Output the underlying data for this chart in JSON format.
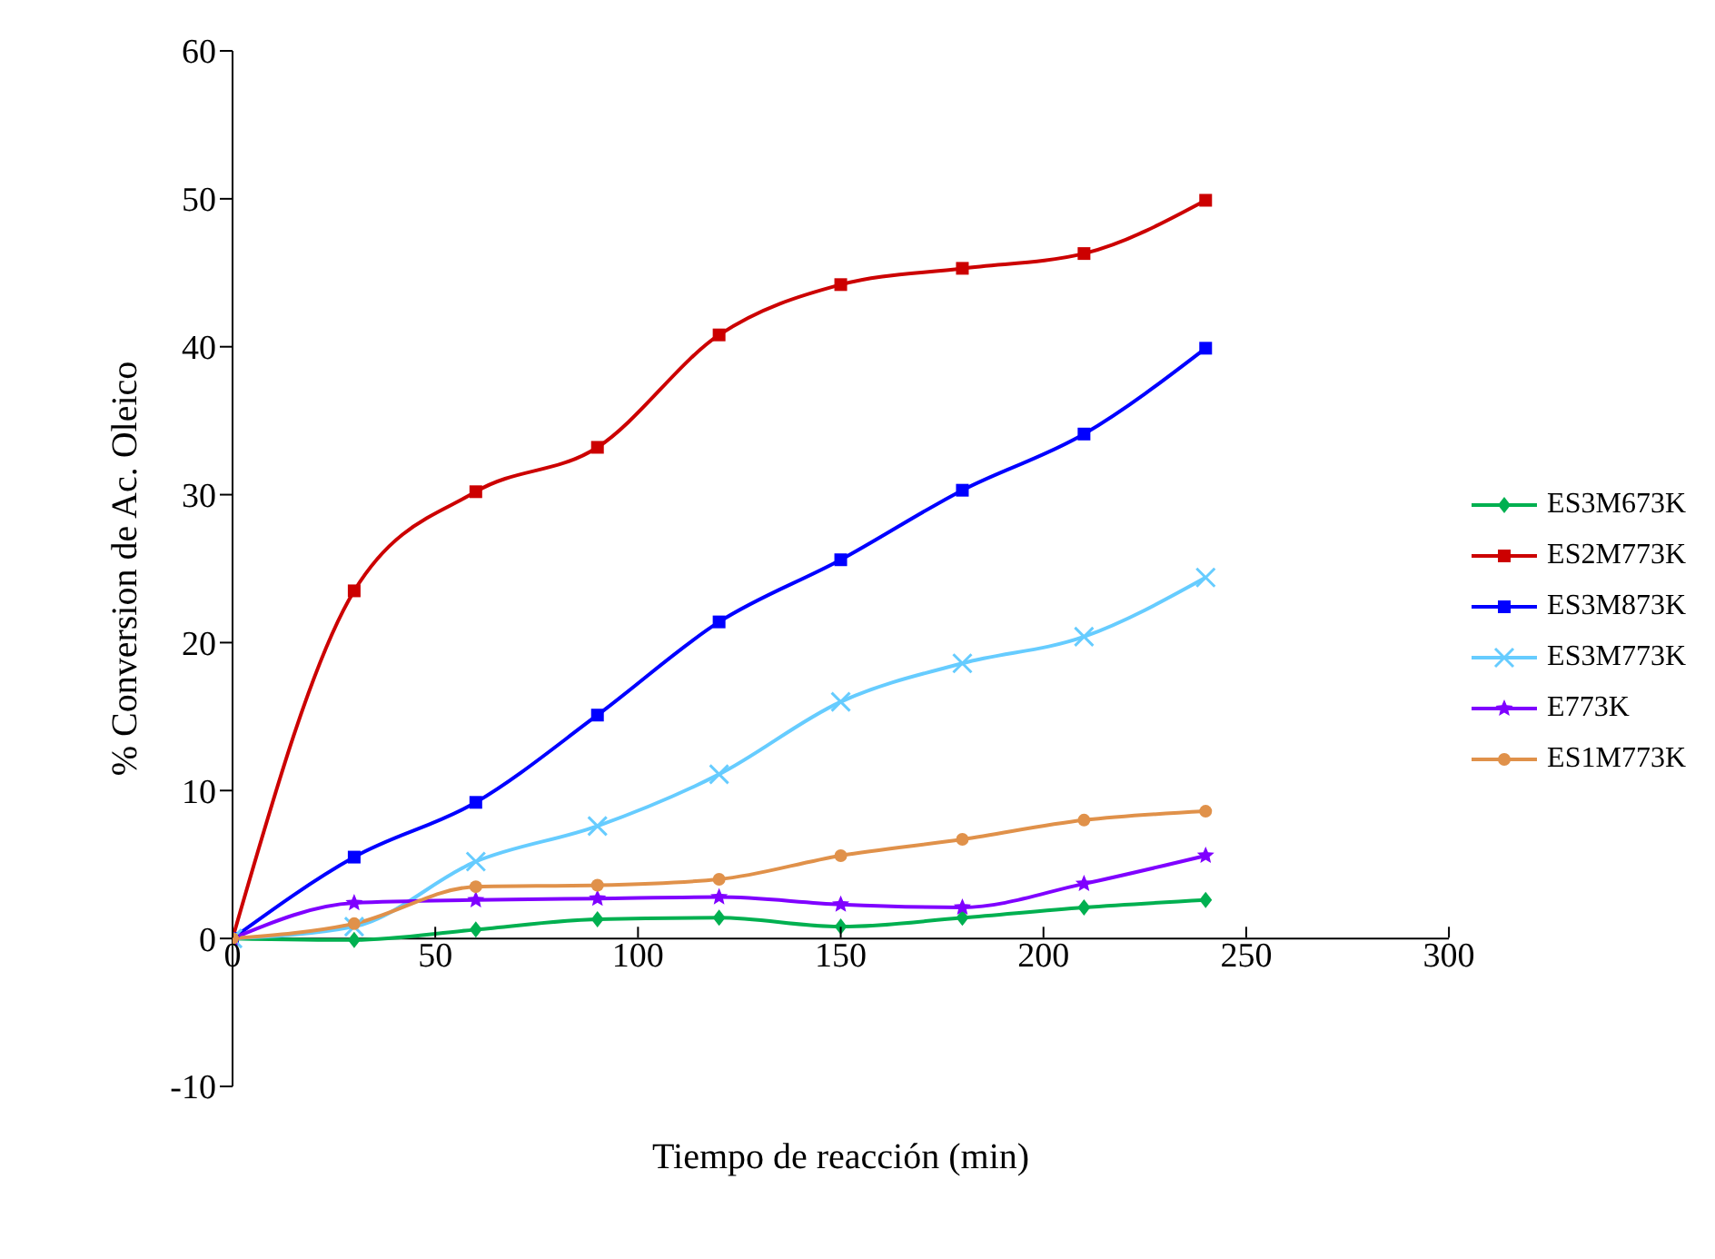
{
  "chart_data": {
    "type": "line",
    "xlabel": "Tiempo de reacción (min)",
    "ylabel": "% Conversion de Ac. Oleico",
    "x": [
      0,
      30,
      60,
      90,
      120,
      150,
      180,
      210,
      240
    ],
    "series": [
      {
        "name": "ES3M673K",
        "color": "#00b050",
        "marker": "diamond",
        "values": [
          0,
          -0.1,
          0.6,
          1.3,
          1.4,
          0.8,
          1.4,
          2.1,
          2.6
        ]
      },
      {
        "name": "ES2M773K",
        "color": "#cc0000",
        "marker": "square",
        "values": [
          0,
          23.5,
          30.2,
          33.2,
          40.8,
          44.2,
          45.3,
          46.3,
          49.9
        ]
      },
      {
        "name": "ES3M873K",
        "color": "#0000ff",
        "marker": "square",
        "values": [
          0,
          5.5,
          9.2,
          15.1,
          21.4,
          25.6,
          30.3,
          34.1,
          39.9
        ]
      },
      {
        "name": "ES3M773K",
        "color": "#66ccff",
        "marker": "cross",
        "values": [
          0,
          0.8,
          5.2,
          7.6,
          11.1,
          16.0,
          18.6,
          20.4,
          24.4
        ]
      },
      {
        "name": "E773K",
        "color": "#7f00ff",
        "marker": "star",
        "values": [
          0,
          2.4,
          2.6,
          2.7,
          2.8,
          2.3,
          2.1,
          3.7,
          5.6
        ]
      },
      {
        "name": "ES1M773K",
        "color": "#e0914a",
        "marker": "circle",
        "values": [
          0,
          1.0,
          3.5,
          3.6,
          4.0,
          5.6,
          6.7,
          8.0,
          8.6
        ]
      }
    ],
    "xlim": [
      0,
      300
    ],
    "xticks": [
      0,
      50,
      100,
      150,
      200,
      250,
      300
    ],
    "ylim": [
      -10,
      60
    ],
    "yticks": [
      -10,
      0,
      10,
      20,
      30,
      40,
      50,
      60
    ],
    "grid": false,
    "legend": "right",
    "line_style": "solid"
  }
}
